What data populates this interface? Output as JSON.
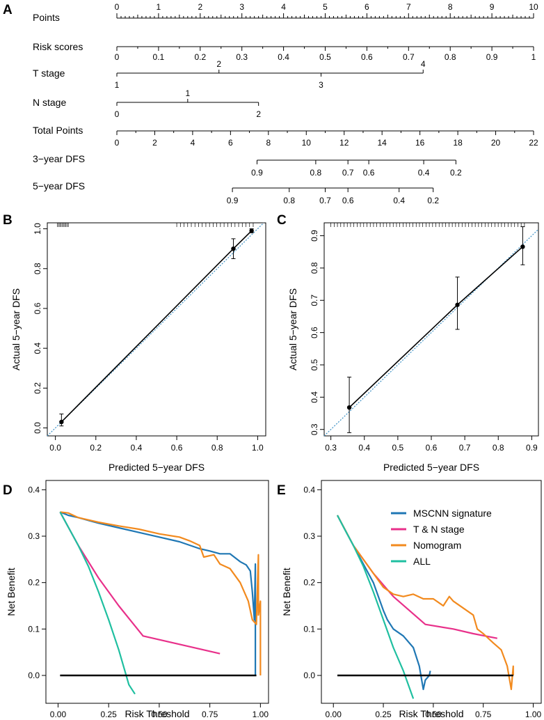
{
  "panel_labels": {
    "A": "A",
    "B": "B",
    "C": "C",
    "D": "D",
    "E": "E"
  },
  "chart_data": [
    {
      "panel": "A",
      "type": "nomogram",
      "rows": [
        {
          "label": "Points",
          "ticks": [
            "0",
            "1",
            "2",
            "3",
            "4",
            "5",
            "6",
            "7",
            "8",
            "9",
            "10"
          ]
        },
        {
          "label": "Risk scores",
          "ticks": [
            "0",
            "0.1",
            "0.2",
            "0.3",
            "0.4",
            "0.5",
            "0.6",
            "0.7",
            "0.8",
            "0.9",
            "1"
          ]
        },
        {
          "label": "T stage",
          "ticks": [
            "1",
            "2",
            "3",
            "4"
          ],
          "points": [
            0,
            2.45,
            4.9,
            7.35
          ]
        },
        {
          "label": "N stage",
          "ticks": [
            "0",
            "1",
            "2"
          ],
          "points": [
            0,
            1.7,
            3.4
          ]
        },
        {
          "label": "Total Points",
          "ticks": [
            "0",
            "2",
            "4",
            "6",
            "8",
            "10",
            "12",
            "14",
            "16",
            "18",
            "20",
            "22"
          ]
        },
        {
          "label": "3−year DFS",
          "ticks": [
            "0.9",
            "0.8",
            "0.7",
            "0.6",
            "0.4",
            "0.2"
          ],
          "total_points": [
            7.4,
            10.5,
            12.2,
            13.3,
            16.2,
            17.9
          ]
        },
        {
          "label": "5−year DFS",
          "ticks": [
            "0.9",
            "0.8",
            "0.7",
            "0.6",
            "0.4",
            "0.2"
          ],
          "total_points": [
            6.1,
            9.1,
            11.0,
            12.2,
            14.9,
            16.7
          ]
        }
      ]
    },
    {
      "panel": "B",
      "type": "scatter",
      "xlabel": "Predicted 5−year DFS",
      "ylabel": "Actual 5−year DFS",
      "xlim": [
        -0.04,
        1.04
      ],
      "ylim": [
        -0.04,
        1.03
      ],
      "xticks": [
        "0.0",
        "0.2",
        "0.4",
        "0.6",
        "0.8",
        "1.0"
      ],
      "yticks": [
        "0.0",
        "0.2",
        "0.4",
        "0.6",
        "0.8",
        "1.0"
      ],
      "points": [
        {
          "x": 0.03,
          "y": 0.03,
          "lo": 0.01,
          "hi": 0.07
        },
        {
          "x": 0.88,
          "y": 0.9,
          "lo": 0.85,
          "hi": 0.95
        },
        {
          "x": 0.97,
          "y": 0.99,
          "lo": 0.98,
          "hi": 1.0
        }
      ]
    },
    {
      "panel": "C",
      "type": "scatter",
      "xlabel": "Predicted 5−year DFS",
      "ylabel": "Actual 5−year DFS",
      "xlim": [
        0.28,
        0.92
      ],
      "ylim": [
        0.28,
        0.94
      ],
      "xticks": [
        "0.3",
        "0.4",
        "0.5",
        "0.6",
        "0.7",
        "0.8",
        "0.9"
      ],
      "yticks": [
        "0.3",
        "0.4",
        "0.5",
        "0.6",
        "0.7",
        "0.8",
        "0.9"
      ],
      "points": [
        {
          "x": 0.355,
          "y": 0.368,
          "lo": 0.29,
          "hi": 0.462
        },
        {
          "x": 0.678,
          "y": 0.686,
          "lo": 0.61,
          "hi": 0.772
        },
        {
          "x": 0.873,
          "y": 0.866,
          "lo": 0.81,
          "hi": 0.928
        }
      ]
    },
    {
      "panel": "D",
      "type": "line",
      "xlabel": "Risk Threshold",
      "ylabel": "Net Benefit",
      "xlim": [
        -0.06,
        1.04
      ],
      "ylim": [
        -0.06,
        0.42
      ],
      "xticks": [
        "0.00",
        "0.25",
        "0.50",
        "0.75",
        "1.00"
      ],
      "yticks": [
        "0.0",
        "0.1",
        "0.2",
        "0.3",
        "0.4"
      ],
      "series": [
        {
          "name": "MSCNN signature",
          "color": "#1f77b4",
          "x": [
            0.01,
            0.05,
            0.1,
            0.2,
            0.3,
            0.4,
            0.5,
            0.6,
            0.7,
            0.75,
            0.8,
            0.85,
            0.9,
            0.93,
            0.95,
            0.96,
            0.97,
            0.975,
            0.975
          ],
          "y": [
            0.352,
            0.345,
            0.34,
            0.328,
            0.318,
            0.308,
            0.298,
            0.288,
            0.273,
            0.268,
            0.262,
            0.262,
            0.245,
            0.238,
            0.225,
            0.18,
            0.12,
            0.24,
            0.0
          ]
        },
        {
          "name": "T & N stage",
          "color": "#e8308a",
          "x": [
            0.01,
            0.1,
            0.2,
            0.3,
            0.42,
            0.6,
            0.8
          ],
          "y": [
            0.352,
            0.28,
            0.21,
            0.15,
            0.085,
            0.067,
            0.047
          ]
        },
        {
          "name": "Nomogram",
          "color": "#f28a1e",
          "x": [
            0.01,
            0.05,
            0.1,
            0.2,
            0.3,
            0.4,
            0.5,
            0.6,
            0.65,
            0.7,
            0.72,
            0.77,
            0.8,
            0.85,
            0.9,
            0.94,
            0.96,
            0.98,
            0.99,
            0.99,
            1.0,
            1.0
          ],
          "y": [
            0.352,
            0.35,
            0.34,
            0.33,
            0.322,
            0.315,
            0.305,
            0.298,
            0.29,
            0.28,
            0.255,
            0.26,
            0.24,
            0.23,
            0.2,
            0.16,
            0.12,
            0.11,
            0.26,
            0.13,
            0.16,
            0.0
          ]
        },
        {
          "name": "ALL",
          "color": "#1fbfa0",
          "x": [
            0.01,
            0.05,
            0.1,
            0.15,
            0.2,
            0.25,
            0.3,
            0.35,
            0.38
          ],
          "y": [
            0.352,
            0.32,
            0.28,
            0.235,
            0.18,
            0.12,
            0.055,
            -0.02,
            -0.04
          ]
        },
        {
          "name": "None",
          "color": "#000000",
          "x": [
            0.01,
            0.98
          ],
          "y": [
            0.0,
            0.0
          ]
        }
      ]
    },
    {
      "panel": "E",
      "type": "line",
      "xlabel": "Risk Threshold",
      "ylabel": "Net Benefit",
      "xlim": [
        -0.06,
        1.04
      ],
      "ylim": [
        -0.06,
        0.42
      ],
      "xticks": [
        "0.00",
        "0.25",
        "0.50",
        "0.75",
        "1.00"
      ],
      "yticks": [
        "0.0",
        "0.1",
        "0.2",
        "0.3",
        "0.4"
      ],
      "legend": [
        "MSCNN signature",
        "T & N stage",
        "Nomogram",
        "ALL"
      ],
      "series": [
        {
          "name": "MSCNN signature",
          "color": "#1f77b4",
          "x": [
            0.02,
            0.1,
            0.15,
            0.2,
            0.25,
            0.27,
            0.3,
            0.35,
            0.4,
            0.43,
            0.45,
            0.46,
            0.48,
            0.485
          ],
          "y": [
            0.345,
            0.28,
            0.24,
            0.2,
            0.14,
            0.12,
            0.1,
            0.085,
            0.06,
            0.02,
            -0.03,
            -0.01,
            0.0,
            0.01
          ]
        },
        {
          "name": "T & N stage",
          "color": "#e8308a",
          "x": [
            0.02,
            0.1,
            0.2,
            0.3,
            0.46,
            0.6,
            0.7,
            0.82
          ],
          "y": [
            0.345,
            0.28,
            0.22,
            0.17,
            0.11,
            0.1,
            0.09,
            0.08
          ]
        },
        {
          "name": "Nomogram",
          "color": "#f28a1e",
          "x": [
            0.02,
            0.1,
            0.15,
            0.2,
            0.25,
            0.3,
            0.35,
            0.4,
            0.45,
            0.5,
            0.55,
            0.58,
            0.6,
            0.7,
            0.72,
            0.75,
            0.8,
            0.84,
            0.87,
            0.89,
            0.9,
            0.9
          ],
          "y": [
            0.345,
            0.28,
            0.25,
            0.22,
            0.19,
            0.175,
            0.17,
            0.175,
            0.165,
            0.165,
            0.15,
            0.17,
            0.16,
            0.13,
            0.1,
            0.09,
            0.07,
            0.055,
            0.02,
            -0.03,
            0.02,
            0.0
          ]
        },
        {
          "name": "ALL",
          "color": "#1fbfa0",
          "x": [
            0.02,
            0.05,
            0.1,
            0.15,
            0.2,
            0.25,
            0.3,
            0.35,
            0.4
          ],
          "y": [
            0.345,
            0.32,
            0.28,
            0.235,
            0.18,
            0.12,
            0.06,
            0.01,
            -0.05
          ]
        },
        {
          "name": "None",
          "color": "#000000",
          "x": [
            0.02,
            0.9
          ],
          "y": [
            0.0,
            0.0
          ]
        }
      ]
    }
  ]
}
